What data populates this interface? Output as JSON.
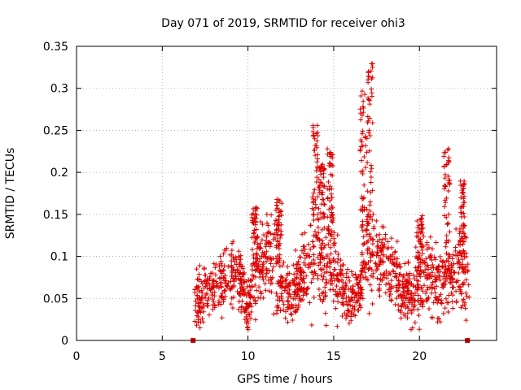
{
  "chart_data": {
    "type": "scatter",
    "title": "Day 071 of 2019, SRMTID for receiver ohi3",
    "xlabel": "GPS time / hours",
    "ylabel": "SRMTID / TECUs",
    "xlim": [
      0,
      24.5
    ],
    "ylim": [
      0,
      0.35
    ],
    "xticks": [
      0,
      5,
      10,
      15,
      20
    ],
    "xtick_labels": [
      "0",
      "5",
      "10",
      "15",
      "20"
    ],
    "yticks": [
      0,
      0.05,
      0.1,
      0.15,
      0.2,
      0.25,
      0.3,
      0.35
    ],
    "ytick_labels": [
      "0",
      "0.05",
      "0.1",
      "0.15",
      "0.2",
      "0.25",
      "0.3",
      "0.35"
    ],
    "grid": true,
    "marker": "+",
    "color": "#dd0000",
    "series": [
      {
        "name": "SRMTID",
        "profile_hours": [
          6.9,
          7.2,
          7.5,
          8.0,
          8.5,
          9.0,
          9.5,
          10.0,
          10.5,
          11.0,
          11.5,
          12.0,
          12.5,
          13.0,
          13.5,
          14.0,
          14.5,
          15.0,
          15.5,
          16.0,
          16.5,
          17.0,
          17.5,
          18.0,
          18.5,
          19.0,
          19.5,
          20.0,
          20.5,
          21.0,
          21.5,
          22.0,
          22.5,
          22.9
        ],
        "profile_level": [
          0.05,
          0.05,
          0.06,
          0.06,
          0.07,
          0.08,
          0.07,
          0.04,
          0.08,
          0.09,
          0.1,
          0.06,
          0.05,
          0.07,
          0.09,
          0.11,
          0.09,
          0.1,
          0.06,
          0.05,
          0.06,
          0.12,
          0.1,
          0.09,
          0.08,
          0.06,
          0.05,
          0.07,
          0.08,
          0.07,
          0.07,
          0.08,
          0.08,
          0.07
        ],
        "profile_spread": [
          0.03,
          0.03,
          0.03,
          0.03,
          0.03,
          0.04,
          0.03,
          0.03,
          0.04,
          0.04,
          0.05,
          0.03,
          0.03,
          0.04,
          0.05,
          0.06,
          0.05,
          0.05,
          0.03,
          0.03,
          0.03,
          0.06,
          0.04,
          0.04,
          0.04,
          0.03,
          0.03,
          0.04,
          0.04,
          0.04,
          0.04,
          0.04,
          0.05,
          0.03
        ],
        "point_count": 1500,
        "spikes": [
          {
            "hour": 10.4,
            "peak": 0.16
          },
          {
            "hour": 11.8,
            "peak": 0.17
          },
          {
            "hour": 13.9,
            "peak": 0.26
          },
          {
            "hour": 14.3,
            "peak": 0.21
          },
          {
            "hour": 14.8,
            "peak": 0.23
          },
          {
            "hour": 16.7,
            "peak": 0.3
          },
          {
            "hour": 17.1,
            "peak": 0.33
          },
          {
            "hour": 20.0,
            "peak": 0.15
          },
          {
            "hour": 21.6,
            "peak": 0.23
          },
          {
            "hour": 22.5,
            "peak": 0.19
          }
        ]
      }
    ],
    "range_markers": [
      {
        "hour": 6.8,
        "value": 0
      },
      {
        "hour": 22.8,
        "value": 0
      }
    ]
  }
}
